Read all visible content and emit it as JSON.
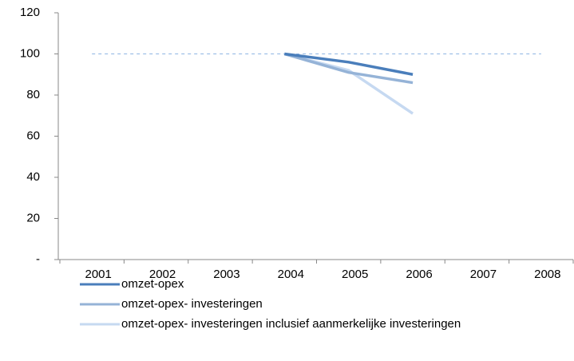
{
  "chart_data": {
    "type": "line",
    "categories": [
      "2001",
      "2002",
      "2003",
      "2004",
      "2005",
      "2006",
      "2007",
      "2008"
    ],
    "series": [
      {
        "name": "omzet-opex",
        "color": "#4a7ebb",
        "values": [
          null,
          null,
          null,
          100,
          96,
          90,
          null,
          null
        ]
      },
      {
        "name": "omzet-opex- investeringen",
        "color": "#95b3d7",
        "values": [
          null,
          null,
          null,
          100,
          91,
          86,
          null,
          null
        ]
      },
      {
        "name": "omzet-opex- investeringen inclusief aanmerkelijke investeringen",
        "color": "#c6d9f1",
        "values": [
          null,
          null,
          null,
          100,
          92,
          71,
          null,
          null
        ]
      }
    ],
    "reference_line": {
      "value": 100,
      "color": "#8eb4e3",
      "style": "dashed"
    },
    "ylim": [
      0,
      120
    ],
    "yticks": [
      {
        "value": 0,
        "label": "-"
      },
      20,
      40,
      60,
      80,
      100,
      120
    ],
    "legend": "bottom"
  }
}
